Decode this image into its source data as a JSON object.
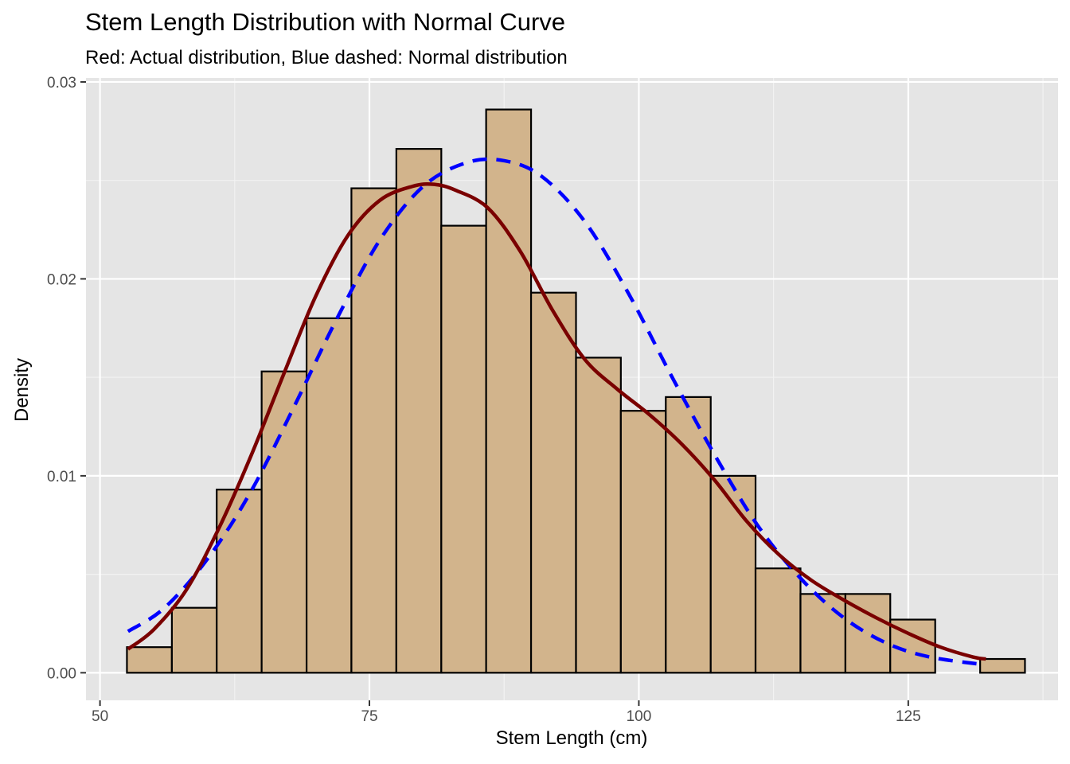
{
  "chart_data": {
    "type": "bar",
    "title": "Stem Length Distribution with Normal Curve",
    "subtitle": "Red: Actual distribution, Blue dashed: Normal distribution",
    "xlabel": "Stem Length (cm)",
    "ylabel": "Density",
    "xlim": [
      48.7,
      138.9
    ],
    "ylim": [
      -0.0014,
      0.0302
    ],
    "x_ticks": [
      50,
      75,
      100,
      125
    ],
    "x_tick_labels": [
      "50",
      "75",
      "100",
      "125"
    ],
    "y_ticks": [
      0.0,
      0.01,
      0.02,
      0.03
    ],
    "y_tick_labels": [
      "0.00",
      "0.01",
      "0.02",
      "0.03"
    ],
    "grid": true,
    "histogram": {
      "fill": "#d2b48c",
      "edge": "#000000",
      "bin_edges": [
        52.5,
        56.67,
        60.83,
        65.0,
        69.17,
        73.33,
        77.5,
        81.67,
        85.83,
        90.0,
        94.17,
        98.33,
        102.5,
        106.67,
        110.83,
        115.0,
        119.17,
        123.33,
        127.5,
        131.67,
        135.83
      ],
      "densities": [
        0.0013,
        0.0033,
        0.0093,
        0.0153,
        0.018,
        0.0246,
        0.0266,
        0.0227,
        0.0286,
        0.0193,
        0.016,
        0.0133,
        0.014,
        0.01,
        0.0053,
        0.004,
        0.004,
        0.0027,
        0.0,
        0.0007
      ]
    },
    "series": [
      {
        "name": "Actual distribution",
        "color": "#7a0000",
        "style": "solid",
        "x": [
          52.6,
          55,
          58,
          61,
          64,
          67,
          70,
          73,
          76,
          79,
          81,
          83,
          86,
          89,
          92,
          95,
          98,
          101,
          104,
          107,
          110,
          113,
          116,
          119,
          122,
          125,
          128,
          131,
          132.2
        ],
        "y": [
          0.0012,
          0.0022,
          0.0042,
          0.0073,
          0.011,
          0.0151,
          0.0191,
          0.0222,
          0.024,
          0.0247,
          0.0248,
          0.0245,
          0.0236,
          0.0214,
          0.0184,
          0.0159,
          0.0144,
          0.0131,
          0.0116,
          0.0098,
          0.0077,
          0.006,
          0.0047,
          0.0037,
          0.0028,
          0.002,
          0.0013,
          0.0008,
          0.0007
        ]
      },
      {
        "name": "Normal distribution",
        "color": "#0000ff",
        "style": "dashed",
        "x": [
          52.6,
          56,
          60,
          64,
          68,
          72,
          76,
          80,
          84,
          87.5,
          91,
          95,
          99,
          103,
          107,
          111,
          115,
          119,
          123,
          127,
          132.2
        ],
        "y": [
          0.0021,
          0.0033,
          0.0058,
          0.0092,
          0.0135,
          0.018,
          0.022,
          0.0247,
          0.0259,
          0.026,
          0.0252,
          0.0229,
          0.0193,
          0.0151,
          0.0111,
          0.0075,
          0.0048,
          0.0028,
          0.0015,
          0.0008,
          0.0004
        ]
      }
    ]
  }
}
